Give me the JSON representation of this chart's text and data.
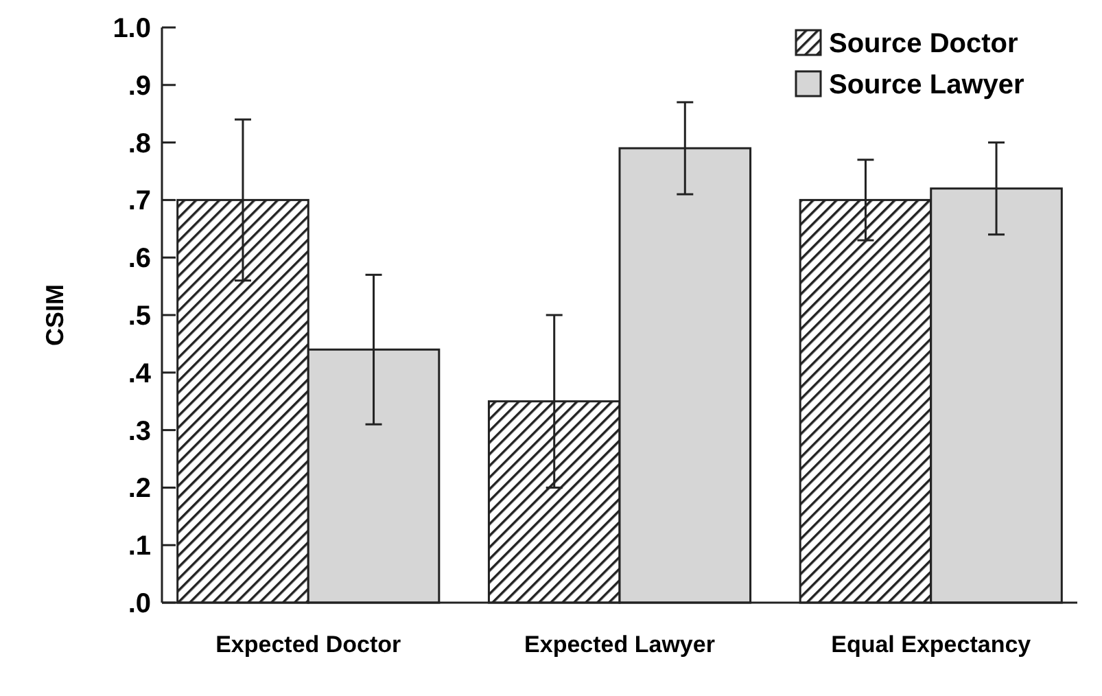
{
  "chart_data": {
    "type": "bar",
    "ylabel": "CSIM",
    "categories": [
      "Expected Doctor",
      "Expected Lawyer",
      "Equal Expectancy"
    ],
    "series": [
      {
        "name": "Source Doctor",
        "color": "#222222",
        "values": [
          0.7,
          0.35,
          0.7
        ],
        "errors": [
          0.14,
          0.15,
          0.07
        ]
      },
      {
        "name": "Source Lawyer",
        "color": "#d6d6d6",
        "values": [
          0.44,
          0.79,
          0.72
        ],
        "errors": [
          0.13,
          0.08,
          0.08
        ]
      }
    ],
    "ylim": [
      0,
      1
    ],
    "yticks": [
      {
        "value": 0,
        "label": ".0"
      },
      {
        "value": 0.1,
        "label": ".1"
      },
      {
        "value": 0.2,
        "label": ".2"
      },
      {
        "value": 0.3,
        "label": ".3"
      },
      {
        "value": 0.4,
        "label": ".4"
      },
      {
        "value": 0.5,
        "label": ".5"
      },
      {
        "value": 0.6,
        "label": ".6"
      },
      {
        "value": 0.7,
        "label": ".7"
      },
      {
        "value": 0.8,
        "label": ".8"
      },
      {
        "value": 0.9,
        "label": ".9"
      },
      {
        "value": 1,
        "label": "1.0"
      }
    ],
    "legend": "top right",
    "grid": false
  }
}
